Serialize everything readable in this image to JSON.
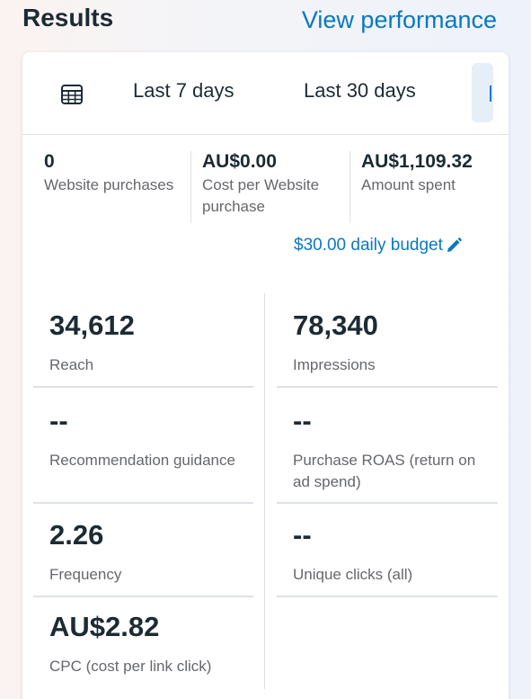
{
  "header": {
    "title": "Results",
    "view_performance": "View performance"
  },
  "tabs": {
    "last7": "Last 7 days",
    "last30": "Last 30 days",
    "calendar_icon": "calendar-icon"
  },
  "summary": [
    {
      "value": "0",
      "label": "Website purchases"
    },
    {
      "value": "AU$0.00",
      "label": "Cost per Website purchase"
    },
    {
      "value": "AU$1,109.32",
      "label": "Amount spent"
    }
  ],
  "budget": {
    "label": "$30.00 daily budget",
    "icon": "pencil-icon",
    "color": "#0a78be"
  },
  "metrics": {
    "reach": {
      "value": "34,612",
      "label": "Reach"
    },
    "impressions": {
      "value": "78,340",
      "label": "Impressions"
    },
    "recommendation": {
      "value": "--",
      "label": "Recommendation guidance"
    },
    "roas": {
      "value": "--",
      "label": "Purchase ROAS (return on ad spend)"
    },
    "frequency": {
      "value": "2.26",
      "label": "Frequency"
    },
    "unique_clicks": {
      "value": "--",
      "label": "Unique clicks (all)"
    },
    "cpc": {
      "value": "AU$2.82",
      "label": "CPC (cost per link click)"
    }
  }
}
